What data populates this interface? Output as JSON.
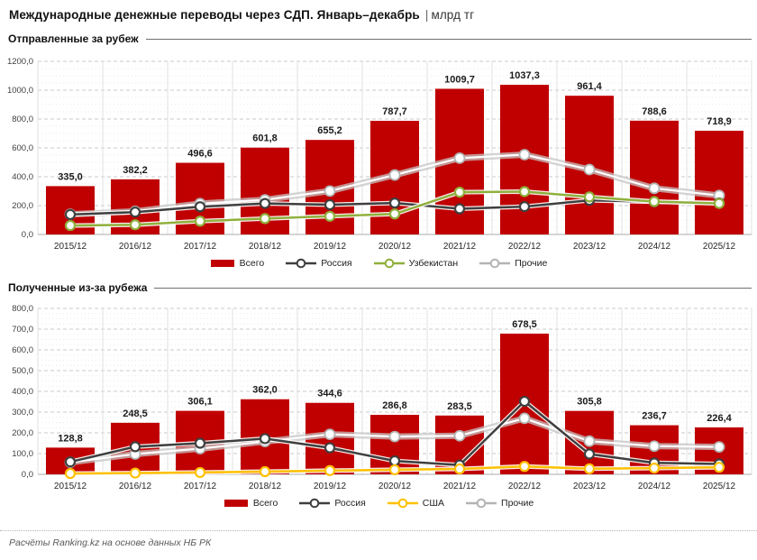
{
  "page": {
    "title": "Международные денежные переводы через СДП. Январь–декабрь",
    "title_separator": "|",
    "title_unit": "млрд тг",
    "footer": "Расчёты Ranking.kz на основе данных НБ РК"
  },
  "colors": {
    "bar_red": "#C00000",
    "russia_dark": "#3F3F3F",
    "uzbekistan_green": "#8FB03C",
    "usa_yellow": "#FFC000",
    "others_gray": "#C8C8C8",
    "grid_major": "#CACACA",
    "grid_minor": "#E9E9E9"
  },
  "chart_data": [
    {
      "type": "bar",
      "title": "Отправленные за рубеж",
      "categories": [
        "2015/12",
        "2016/12",
        "2017/12",
        "2018/12",
        "2019/12",
        "2020/12",
        "2021/12",
        "2022/12",
        "2023/12",
        "2024/12",
        "2025/12"
      ],
      "ylim": [
        0,
        1200
      ],
      "ytick_step": 200,
      "grid": true,
      "legend_position": "bottom",
      "bar_series": {
        "id": "total",
        "name": "Всего",
        "color": "#C00000",
        "values": [
          335.0,
          382.2,
          496.6,
          601.8,
          655.2,
          787.7,
          1009.7,
          1037.3,
          961.4,
          788.6,
          718.9
        ]
      },
      "line_series": [
        {
          "id": "russia",
          "name": "Россия",
          "color": "#3F3F3F",
          "values": [
            138,
            155,
            192,
            215,
            206,
            218,
            178,
            193,
            237,
            226,
            218
          ]
        },
        {
          "id": "uzbekistan",
          "name": "Узбекистан",
          "color": "#8FB03C",
          "values": [
            62,
            67,
            92,
            110,
            126,
            142,
            293,
            297,
            260,
            228,
            215
          ]
        },
        {
          "id": "others",
          "name": "Прочие",
          "color": "#C8C8C8",
          "values": [
            140,
            160,
            214,
            240,
            301,
            412,
            529,
            553,
            450,
            320,
            270
          ]
        }
      ]
    },
    {
      "type": "bar",
      "title": "Полученные из-за рубежа",
      "categories": [
        "2015/12",
        "2016/12",
        "2017/12",
        "2018/12",
        "2019/12",
        "2020/12",
        "2021/12",
        "2022/12",
        "2023/12",
        "2024/12",
        "2025/12"
      ],
      "ylim": [
        0,
        800
      ],
      "ytick_step": 100,
      "grid": true,
      "legend_position": "bottom",
      "bar_series": {
        "id": "total",
        "name": "Всего",
        "color": "#C00000",
        "values": [
          128.8,
          248.5,
          306.1,
          362.0,
          344.6,
          286.8,
          283.5,
          678.5,
          305.8,
          236.7,
          226.4
        ]
      },
      "line_series": [
        {
          "id": "russia",
          "name": "Россия",
          "color": "#3F3F3F",
          "values": [
            60,
            133,
            150,
            172,
            128,
            65,
            45,
            352,
            98,
            55,
            50
          ]
        },
        {
          "id": "usa",
          "name": "США",
          "color": "#FFC000",
          "values": [
            4,
            6,
            9,
            13,
            18,
            22,
            26,
            38,
            27,
            30,
            34
          ]
        },
        {
          "id": "others",
          "name": "Прочие",
          "color": "#C8C8C8",
          "values": [
            58,
            98,
            124,
            158,
            193,
            182,
            186,
            270,
            160,
            136,
            132
          ]
        }
      ]
    }
  ]
}
